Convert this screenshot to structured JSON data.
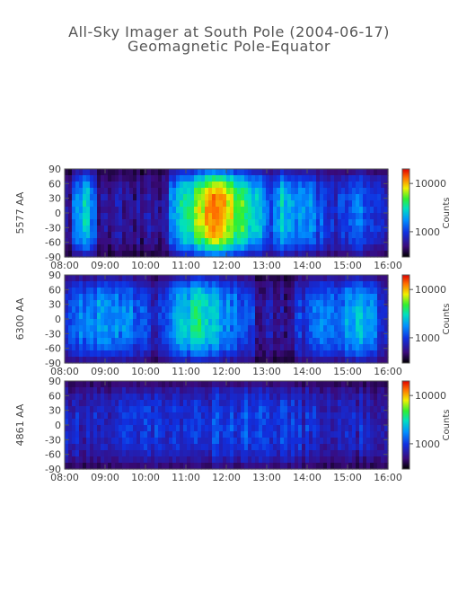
{
  "title": "All-Sky Imager at South Pole (2004-06-17)",
  "subtitle": "Geomagnetic Pole-Equator",
  "chart_data": [
    {
      "type": "heatmap",
      "ylabel": "5577 AA",
      "colorbar_label": "Counts",
      "x_ticks": [
        "08:00",
        "09:00",
        "10:00",
        "11:00",
        "12:00",
        "13:00",
        "14:00",
        "15:00",
        "16:00"
      ],
      "xlim": [
        "08:00",
        "16:00"
      ],
      "y_ticks": [
        90,
        60,
        30,
        0,
        -30,
        -60,
        -90
      ],
      "ylim": [
        -90,
        90
      ],
      "colorbar_ticks": [
        1000,
        10000
      ],
      "colorbar_tick_labels": [
        "1000",
        "10000"
      ],
      "colorbar_log": true,
      "colorbar_range": [
        300,
        20000
      ],
      "activity": [
        {
          "start": "10:35",
          "peak": "11:45",
          "end": "13:00",
          "level": 0.72
        },
        {
          "start": "08:10",
          "peak": "08:30",
          "end": "08:50",
          "level": 0.38
        },
        {
          "start": "13:00",
          "peak": "13:20",
          "end": "14:40",
          "level": 0.35
        },
        {
          "start": "14:40",
          "peak": "15:20",
          "end": "16:00",
          "level": 0.22
        }
      ]
    },
    {
      "type": "heatmap",
      "ylabel": "6300 AA",
      "colorbar_label": "Counts",
      "x_ticks": [
        "08:00",
        "09:00",
        "10:00",
        "11:00",
        "12:00",
        "13:00",
        "14:00",
        "15:00",
        "16:00"
      ],
      "xlim": [
        "08:00",
        "16:00"
      ],
      "y_ticks": [
        90,
        60,
        30,
        0,
        -30,
        -60,
        -90
      ],
      "ylim": [
        -90,
        90
      ],
      "colorbar_ticks": [
        1000,
        10000
      ],
      "colorbar_tick_labels": [
        "1000",
        "10000"
      ],
      "colorbar_log": true,
      "colorbar_range": [
        300,
        20000
      ],
      "activity": [
        {
          "start": "08:00",
          "peak": "09:00",
          "end": "10:10",
          "level": 0.32
        },
        {
          "start": "10:20",
          "peak": "11:15",
          "end": "12:40",
          "level": 0.42
        },
        {
          "start": "13:40",
          "peak": "15:20",
          "end": "16:00",
          "level": 0.3
        }
      ]
    },
    {
      "type": "heatmap",
      "ylabel": "4861 AA",
      "colorbar_label": "Counts",
      "x_ticks": [
        "08:00",
        "09:00",
        "10:00",
        "11:00",
        "12:00",
        "13:00",
        "14:00",
        "15:00",
        "16:00"
      ],
      "xlim": [
        "08:00",
        "16:00"
      ],
      "y_ticks": [
        90,
        60,
        30,
        0,
        -30,
        -60,
        -90
      ],
      "ylim": [
        -90,
        90
      ],
      "colorbar_ticks": [
        1000,
        10000
      ],
      "colorbar_tick_labels": [
        "1000",
        "10000"
      ],
      "colorbar_log": true,
      "colorbar_range": [
        300,
        20000
      ],
      "activity": [
        {
          "start": "08:00",
          "peak": "12:00",
          "end": "16:00",
          "level": 0.14
        }
      ]
    }
  ]
}
